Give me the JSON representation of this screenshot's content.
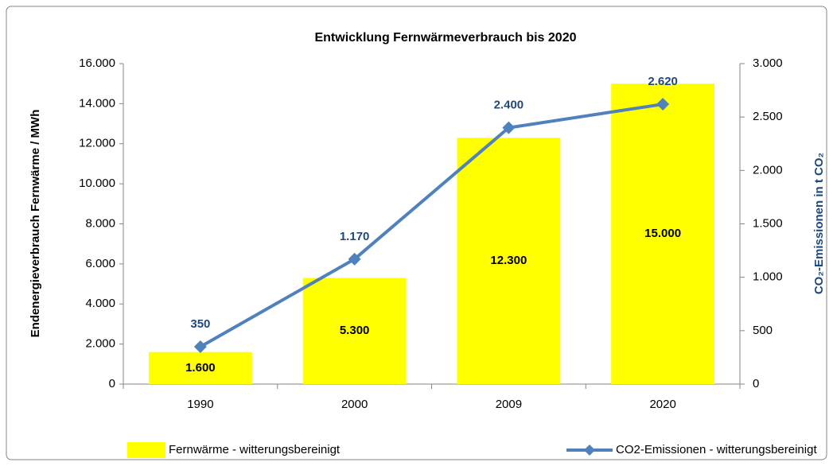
{
  "chart_data": {
    "type": "bar",
    "title": "Entwicklung  Fernwärmeverbrauch bis 2020",
    "y_label": "Endenergieverbrauch Fernwärme  / MWh",
    "y2_label": "CO₂-Emissionen in t CO₂",
    "categories": [
      "1990",
      "2000",
      "2009",
      "2020"
    ],
    "series": [
      {
        "name": "Fernwärme - witterungsbereinigt",
        "type": "bar",
        "color": "#ffff00",
        "values": [
          1600,
          5300,
          12300,
          15000
        ],
        "value_labels": [
          "1.600",
          "5.300",
          "12.300",
          "15.000"
        ]
      },
      {
        "name": "CO2-Emissionen - witterungsbereinigt",
        "type": "line",
        "axis": "y2",
        "color": "#4f81bd",
        "values": [
          350,
          1170,
          2400,
          2620
        ],
        "value_labels": [
          "350",
          "1.170",
          "2.400",
          "2.620"
        ]
      }
    ],
    "ylim": [
      0,
      16000
    ],
    "yticks": [
      0,
      {
        "value": 2000,
        "label": "2.000"
      },
      {
        "value": 4000,
        "label": "4.000"
      },
      {
        "value": 6000,
        "label": "6.000"
      },
      {
        "value": 8000,
        "label": "8.000"
      },
      {
        "value": 10000,
        "label": "10.000"
      },
      {
        "value": 12000,
        "label": "12.000"
      },
      {
        "value": 14000,
        "label": "14.000"
      },
      {
        "value": 16000,
        "label": "16.000"
      }
    ],
    "y2lim": [
      0,
      3000
    ],
    "y2ticks": [
      0,
      500,
      {
        "value": 1000,
        "label": "1.000"
      },
      {
        "value": 1500,
        "label": "1.500"
      },
      {
        "value": 2000,
        "label": "2.000"
      },
      {
        "value": 2500,
        "label": "2.500"
      },
      {
        "value": 3000,
        "label": "3.000"
      }
    ],
    "grid": false,
    "legend": "bottom"
  }
}
